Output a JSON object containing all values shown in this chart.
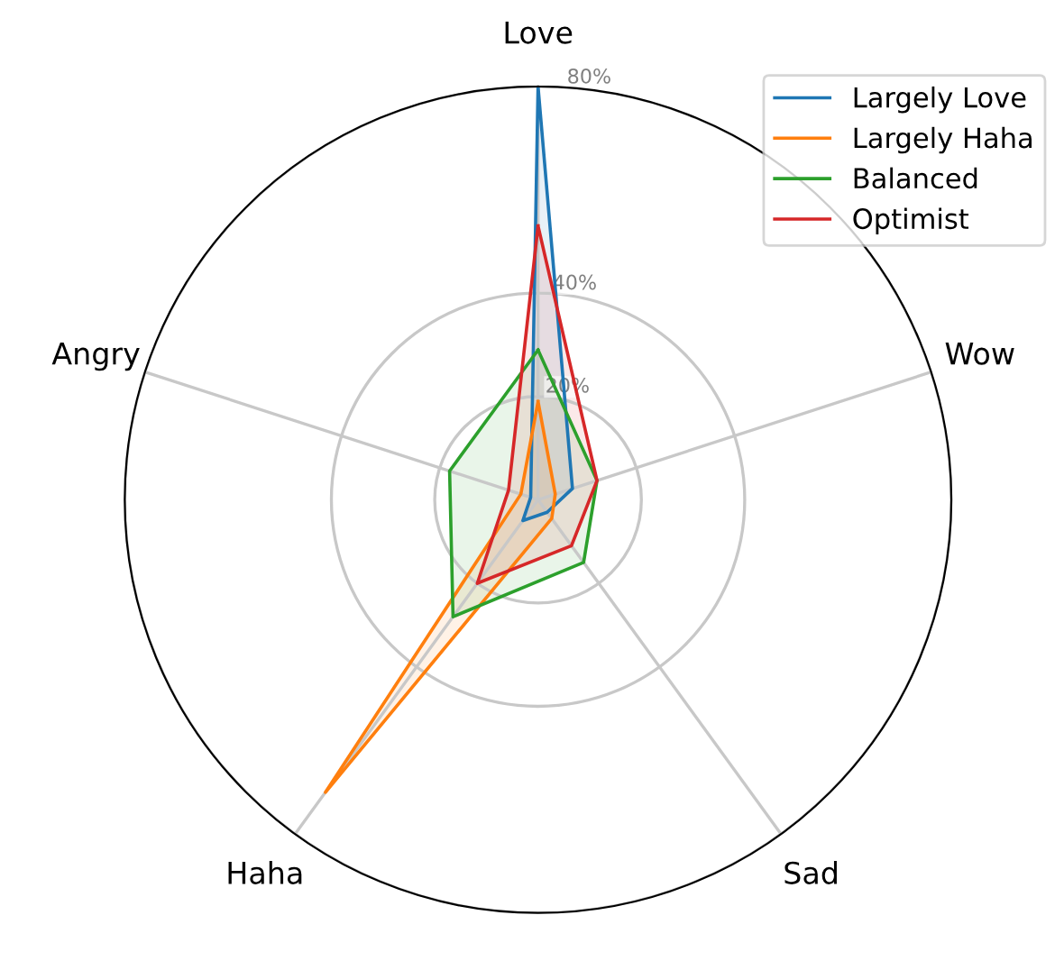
{
  "chart_data": {
    "type": "radar",
    "categories": [
      "Love",
      "Wow",
      "Sad",
      "Haha",
      "Angry"
    ],
    "series": [
      {
        "name": "Largely Love",
        "color": "#1f77b4",
        "values": [
          80,
          7,
          3,
          5,
          1.5
        ]
      },
      {
        "name": "Largely Haha",
        "color": "#ff7f0e",
        "values": [
          19,
          3.5,
          4.5,
          70,
          3.5
        ]
      },
      {
        "name": "Balanced",
        "color": "#2ca02c",
        "values": [
          29,
          12,
          15,
          28,
          18
        ]
      },
      {
        "name": "Optimist",
        "color": "#d62728",
        "values": [
          53,
          12,
          11,
          20,
          6
        ]
      }
    ],
    "ylim": [
      0,
      80
    ],
    "yticks": [
      {
        "value": 20,
        "label": "20%"
      },
      {
        "value": 40,
        "label": "40%"
      },
      {
        "value": 80,
        "label": "80%"
      }
    ],
    "grid": true,
    "legend": "top right",
    "marker": "none",
    "line_style": "solid"
  }
}
